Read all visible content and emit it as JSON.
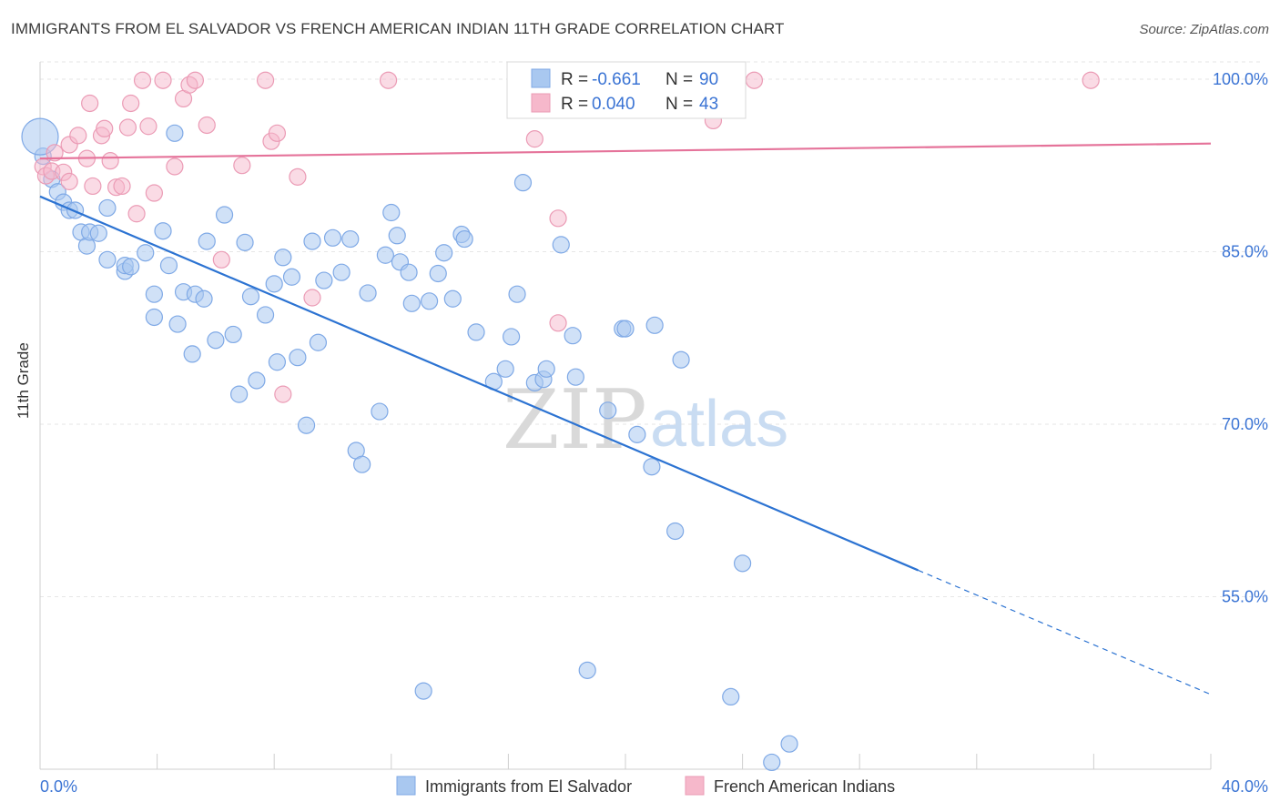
{
  "header": {
    "title": "IMMIGRANTS FROM EL SALVADOR VS FRENCH AMERICAN INDIAN 11TH GRADE CORRELATION CHART",
    "source": "Source: ZipAtlas.com"
  },
  "watermark": {
    "zip": "ZIP",
    "atlas": "atlas"
  },
  "legend": {
    "r_label": "R =",
    "n_label": "N =",
    "entries": [
      {
        "r": "-0.661",
        "n": "90",
        "color": "#a9c8f0"
      },
      {
        "r": "0.040",
        "n": "43",
        "color": "#f6b8cb"
      }
    ]
  },
  "bottom_legend": [
    "Immigrants from El Salvador",
    "French American Indians"
  ],
  "chart_data": {
    "type": "scatter",
    "title": "IMMIGRANTS FROM EL SALVADOR VS FRENCH AMERICAN INDIAN 11TH GRADE CORRELATION CHART",
    "xlabel": "",
    "ylabel": "11th Grade",
    "xlim": [
      0,
      40
    ],
    "ylim": [
      40,
      101.5
    ],
    "x_ticks": [
      "0.0%",
      "40.0%"
    ],
    "y_ticks": [
      {
        "value": 100,
        "label": "100.0%"
      },
      {
        "value": 85,
        "label": "85.0%"
      },
      {
        "value": 70,
        "label": "70.0%"
      },
      {
        "value": 55,
        "label": "55.0%"
      }
    ],
    "grid": true,
    "legend_position": "top-center",
    "series": [
      {
        "name": "Immigrants from El Salvador",
        "color": "#7fa9e6",
        "fill": "#a9c8f0",
        "line_color": "#2c73d2",
        "trend": {
          "x0": 0,
          "y0": 89.8,
          "x1": 30,
          "y1": 57.3,
          "dash_to_x": 40,
          "dash_to_y": 46.5
        },
        "points": [
          [
            0.1,
            93.3
          ],
          [
            0.4,
            91.3
          ],
          [
            0.6,
            90.2
          ],
          [
            0.8,
            89.3
          ],
          [
            1.0,
            88.6
          ],
          [
            1.2,
            88.6
          ],
          [
            1.4,
            86.7
          ],
          [
            1.6,
            85.5
          ],
          [
            1.7,
            86.7
          ],
          [
            2.0,
            86.6
          ],
          [
            2.3,
            84.3
          ],
          [
            2.3,
            88.8
          ],
          [
            2.9,
            83.3
          ],
          [
            2.9,
            83.8
          ],
          [
            3.1,
            83.7
          ],
          [
            3.6,
            84.9
          ],
          [
            3.9,
            81.3
          ],
          [
            3.9,
            79.3
          ],
          [
            4.2,
            86.8
          ],
          [
            4.4,
            83.8
          ],
          [
            4.7,
            78.7
          ],
          [
            4.9,
            81.5
          ],
          [
            5.2,
            76.1
          ],
          [
            5.3,
            81.3
          ],
          [
            5.6,
            80.9
          ],
          [
            5.7,
            85.9
          ],
          [
            6.0,
            77.3
          ],
          [
            6.3,
            88.2
          ],
          [
            6.6,
            77.8
          ],
          [
            6.8,
            72.6
          ],
          [
            7.0,
            85.8
          ],
          [
            7.2,
            81.1
          ],
          [
            7.4,
            73.8
          ],
          [
            7.7,
            79.5
          ],
          [
            8.0,
            82.2
          ],
          [
            8.1,
            75.4
          ],
          [
            8.3,
            84.5
          ],
          [
            8.6,
            82.8
          ],
          [
            8.8,
            75.8
          ],
          [
            9.1,
            69.9
          ],
          [
            9.3,
            85.9
          ],
          [
            9.5,
            77.1
          ],
          [
            9.7,
            82.5
          ],
          [
            10.0,
            86.2
          ],
          [
            10.3,
            83.2
          ],
          [
            10.6,
            86.1
          ],
          [
            10.8,
            67.7
          ],
          [
            11.0,
            66.5
          ],
          [
            11.2,
            81.4
          ],
          [
            11.6,
            71.1
          ],
          [
            11.8,
            84.7
          ],
          [
            12.0,
            88.4
          ],
          [
            12.2,
            86.4
          ],
          [
            12.3,
            84.1
          ],
          [
            12.6,
            83.2
          ],
          [
            12.7,
            80.5
          ],
          [
            13.1,
            46.8
          ],
          [
            13.3,
            80.7
          ],
          [
            13.6,
            83.1
          ],
          [
            13.8,
            84.9
          ],
          [
            14.1,
            80.9
          ],
          [
            14.4,
            86.5
          ],
          [
            14.5,
            86.1
          ],
          [
            14.9,
            78.0
          ],
          [
            15.5,
            73.7
          ],
          [
            15.9,
            74.8
          ],
          [
            16.1,
            77.6
          ],
          [
            16.3,
            81.3
          ],
          [
            16.5,
            91.0
          ],
          [
            16.9,
            73.6
          ],
          [
            17.2,
            73.9
          ],
          [
            17.3,
            74.8
          ],
          [
            17.8,
            85.6
          ],
          [
            18.2,
            77.7
          ],
          [
            18.3,
            74.1
          ],
          [
            18.7,
            48.6
          ],
          [
            19.4,
            71.2
          ],
          [
            19.9,
            78.3
          ],
          [
            20.0,
            78.3
          ],
          [
            20.4,
            69.1
          ],
          [
            20.9,
            66.3
          ],
          [
            21.0,
            78.6
          ],
          [
            21.7,
            60.7
          ],
          [
            21.9,
            75.6
          ],
          [
            23.6,
            46.3
          ],
          [
            24.0,
            57.9
          ],
          [
            25.0,
            40.6
          ],
          [
            25.6,
            42.2
          ],
          [
            4.6,
            95.3
          ],
          [
            0.0,
            95.0
          ]
        ]
      },
      {
        "name": "French American Indians",
        "color": "#eb9bb5",
        "fill": "#f6b8cb",
        "line_color": "#e5739a",
        "trend": {
          "x0": 0,
          "y0": 93.1,
          "x1": 40,
          "y1": 94.4
        },
        "points": [
          [
            0.1,
            92.4
          ],
          [
            0.2,
            91.6
          ],
          [
            0.4,
            92.0
          ],
          [
            0.5,
            93.6
          ],
          [
            0.8,
            91.9
          ],
          [
            1.0,
            94.3
          ],
          [
            1.0,
            91.1
          ],
          [
            1.3,
            95.1
          ],
          [
            1.6,
            93.1
          ],
          [
            1.7,
            97.9
          ],
          [
            1.8,
            90.7
          ],
          [
            2.1,
            95.1
          ],
          [
            2.2,
            95.7
          ],
          [
            2.4,
            92.9
          ],
          [
            2.6,
            90.6
          ],
          [
            2.8,
            90.7
          ],
          [
            3.0,
            95.8
          ],
          [
            3.1,
            97.9
          ],
          [
            3.3,
            88.3
          ],
          [
            3.5,
            99.9
          ],
          [
            3.7,
            95.9
          ],
          [
            3.9,
            90.1
          ],
          [
            4.2,
            99.9
          ],
          [
            4.6,
            92.4
          ],
          [
            4.9,
            98.3
          ],
          [
            5.1,
            99.5
          ],
          [
            5.3,
            99.9
          ],
          [
            5.7,
            96.0
          ],
          [
            6.2,
            84.3
          ],
          [
            6.9,
            92.5
          ],
          [
            7.7,
            99.9
          ],
          [
            7.9,
            94.6
          ],
          [
            8.1,
            95.3
          ],
          [
            8.3,
            72.6
          ],
          [
            8.8,
            91.5
          ],
          [
            9.3,
            81.0
          ],
          [
            11.9,
            99.9
          ],
          [
            16.9,
            94.8
          ],
          [
            17.7,
            87.9
          ],
          [
            17.7,
            78.8
          ],
          [
            23.0,
            96.4
          ],
          [
            24.4,
            99.9
          ],
          [
            35.9,
            99.9
          ]
        ]
      }
    ]
  }
}
